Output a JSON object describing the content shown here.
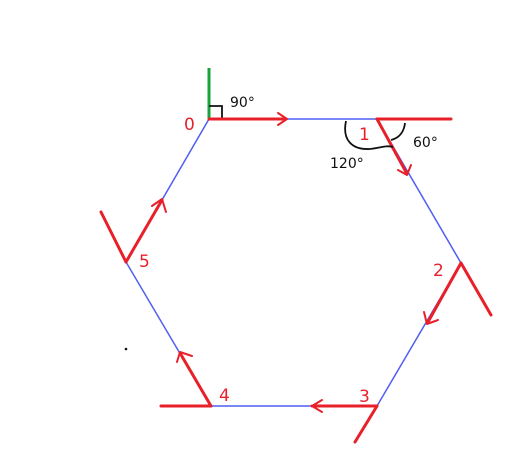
{
  "diagram": {
    "vertices": [
      {
        "label": "0"
      },
      {
        "label": "1"
      },
      {
        "label": "2"
      },
      {
        "label": "3"
      },
      {
        "label": "4"
      },
      {
        "label": "5"
      }
    ],
    "angles": {
      "right_angle": "90°",
      "exterior": "60°",
      "interior": "120°"
    },
    "colors": {
      "hexagon_edge": "#4f5ef2",
      "direction_marks": "#e8202a",
      "vertical_axis": "#1aa33a",
      "annotations": "#111111"
    }
  }
}
